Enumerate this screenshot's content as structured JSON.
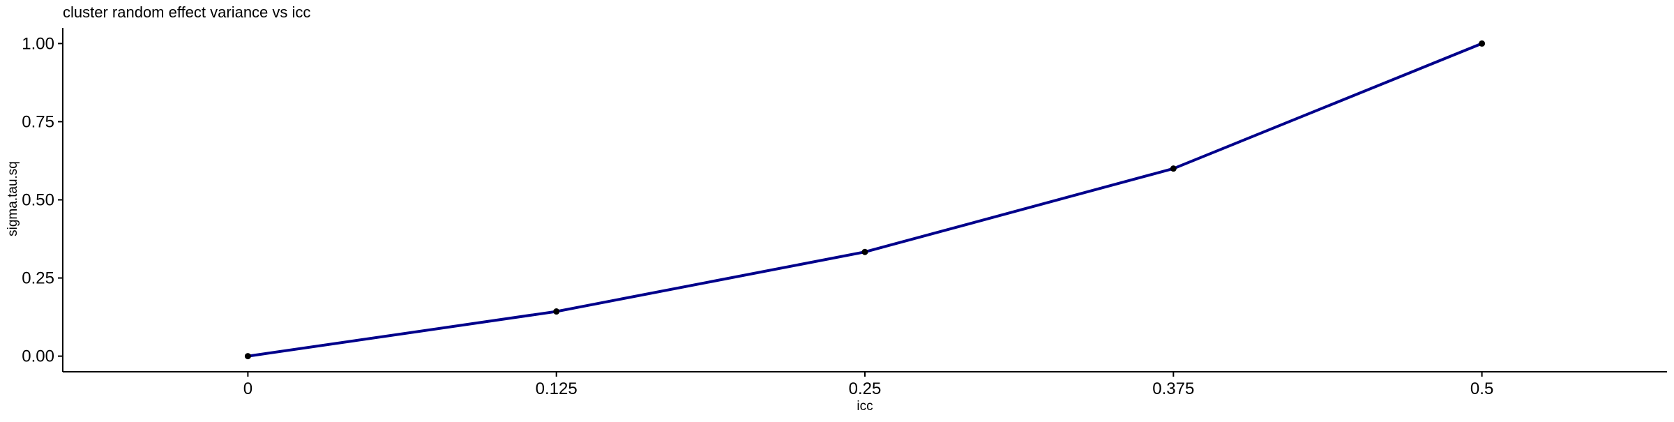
{
  "chart_data": {
    "type": "line",
    "title": "cluster random effect variance vs icc",
    "xlabel": "icc",
    "ylabel": "sigma.tau.sq",
    "x": [
      0,
      0.125,
      0.25,
      0.375,
      0.5
    ],
    "x_tick_labels": [
      "0",
      "0.125",
      "0.25",
      "0.375",
      "0.5"
    ],
    "xlim": [
      -0.075,
      0.575
    ],
    "y_ticks": [
      0,
      0.25,
      0.5,
      0.75,
      1
    ],
    "y_tick_labels": [
      "0.00",
      "0.25",
      "0.50",
      "0.75",
      "1.00"
    ],
    "ylim": [
      -0.05,
      1.05
    ],
    "series": [
      {
        "values": [
          0,
          0.1429,
          0.3333,
          0.6,
          1.0
        ]
      }
    ],
    "grid": false,
    "legend": "none",
    "colors": {
      "line": "#00008B",
      "point": "#000000",
      "axis": "#000000"
    }
  }
}
